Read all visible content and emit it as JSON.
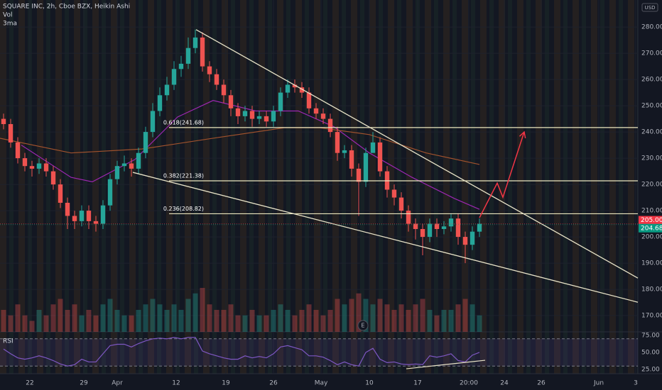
{
  "header": {
    "title": "SQUARE INC, 2h, Cboe BZX, Heikin Ashi",
    "vol": "Vol",
    "ma": "3ma",
    "currency": "USD"
  },
  "chart_data": [
    {
      "type": "candlestick",
      "ohlc": [
        [
          245,
          247,
          241,
          243
        ],
        [
          243,
          245,
          234,
          236
        ],
        [
          236,
          238,
          228,
          230
        ],
        [
          230,
          232,
          225,
          227
        ],
        [
          227,
          229,
          223,
          226
        ],
        [
          226,
          230,
          224,
          228
        ],
        [
          228,
          230,
          223,
          225
        ],
        [
          225,
          227,
          218,
          220
        ],
        [
          220,
          222,
          211,
          213
        ],
        [
          213,
          215,
          203,
          208
        ],
        [
          208,
          210,
          203,
          206
        ],
        [
          206,
          212,
          204,
          210
        ],
        [
          210,
          212,
          203,
          206
        ],
        [
          206,
          208,
          202,
          205
        ],
        [
          205,
          214,
          203,
          212
        ],
        [
          212,
          224,
          210,
          222
        ],
        [
          222,
          229,
          220,
          227
        ],
        [
          227,
          231,
          225,
          228
        ],
        [
          228,
          230,
          223,
          226
        ],
        [
          226,
          234,
          224,
          232
        ],
        [
          232,
          242,
          230,
          240
        ],
        [
          240,
          251,
          238,
          248
        ],
        [
          248,
          257,
          246,
          254
        ],
        [
          254,
          261,
          252,
          258
        ],
        [
          258,
          267,
          256,
          264
        ],
        [
          264,
          269,
          261,
          266
        ],
        [
          266,
          276,
          264,
          272
        ],
        [
          272,
          279,
          270,
          276
        ],
        [
          276,
          278,
          263,
          265
        ],
        [
          265,
          267,
          259,
          262
        ],
        [
          262,
          264,
          256,
          258
        ],
        [
          258,
          260,
          251,
          254
        ],
        [
          254,
          256,
          246,
          249
        ],
        [
          249,
          251,
          243,
          246
        ],
        [
          246,
          250,
          244,
          248
        ],
        [
          248,
          250,
          242,
          245
        ],
        [
          245,
          248,
          243,
          246
        ],
        [
          246,
          248,
          242,
          244
        ],
        [
          244,
          250,
          242,
          248
        ],
        [
          248,
          257,
          246,
          255
        ],
        [
          255,
          260,
          253,
          258
        ],
        [
          258,
          260,
          255,
          257
        ],
        [
          257,
          259,
          253,
          255
        ],
        [
          255,
          257,
          247,
          249
        ],
        [
          249,
          251,
          245,
          247
        ],
        [
          247,
          249,
          243,
          245
        ],
        [
          245,
          247,
          238,
          240
        ],
        [
          240,
          242,
          229,
          232
        ],
        [
          232,
          235,
          230,
          233
        ],
        [
          233,
          235,
          223,
          226
        ],
        [
          226,
          228,
          208,
          221
        ],
        [
          221,
          234,
          219,
          232
        ],
        [
          232,
          240,
          233,
          236
        ],
        [
          236,
          238,
          223,
          225
        ],
        [
          225,
          227,
          215,
          218
        ],
        [
          218,
          220,
          212,
          215
        ],
        [
          215,
          217,
          207,
          210
        ],
        [
          210,
          212,
          202,
          205
        ],
        [
          205,
          207,
          199,
          203
        ],
        [
          203,
          205,
          193,
          200
        ],
        [
          200,
          207,
          198,
          205
        ],
        [
          205,
          207,
          200,
          203
        ],
        [
          203,
          206,
          201,
          204
        ],
        [
          204,
          209,
          202,
          207
        ],
        [
          207,
          209,
          197,
          200
        ],
        [
          200,
          202,
          190,
          197
        ],
        [
          197,
          204,
          195,
          202
        ],
        [
          202,
          207,
          200,
          205
        ]
      ],
      "up_color": "#26a69a",
      "down_color": "#ef5350",
      "volume": [
        4,
        3,
        5,
        3,
        2,
        4,
        3,
        5,
        6,
        4,
        5,
        3,
        4,
        3,
        5,
        6,
        4,
        3,
        3,
        4,
        5,
        6,
        5,
        4,
        5,
        4,
        6,
        7,
        8,
        5,
        4,
        4,
        5,
        3,
        3,
        4,
        3,
        3,
        4,
        5,
        4,
        3,
        4,
        5,
        4,
        3,
        4,
        6,
        5,
        6,
        7,
        6,
        5,
        6,
        5,
        4,
        5,
        4,
        5,
        6,
        4,
        3,
        4,
        4,
        5,
        6,
        5,
        3
      ],
      "ylim": [
        163.8,
        290.3
      ],
      "yticks": [
        {
          "value": 170,
          "label": "170.00"
        },
        {
          "value": 180,
          "label": "180.00"
        },
        {
          "value": 190,
          "label": "190.00"
        },
        {
          "value": 200,
          "label": "200.00"
        },
        {
          "value": 210,
          "label": "210.00"
        },
        {
          "value": 220,
          "label": "220.00"
        },
        {
          "value": 230,
          "label": "230.00"
        },
        {
          "value": 240,
          "label": "240.00"
        },
        {
          "value": 250,
          "label": "250.00"
        },
        {
          "value": 260,
          "label": "260.00"
        },
        {
          "value": 270,
          "label": "270.00"
        },
        {
          "value": 280,
          "label": "280.00"
        }
      ],
      "xlim": [
        -0.5,
        89.3
      ],
      "xticks": [
        {
          "value": 3.7,
          "label": "22"
        },
        {
          "value": 11.3,
          "label": "29"
        },
        {
          "value": 16,
          "label": "Apr"
        },
        {
          "value": 24.3,
          "label": "12"
        },
        {
          "value": 31.3,
          "label": "19"
        },
        {
          "value": 38,
          "label": "26"
        },
        {
          "value": 44.7,
          "label": "May"
        },
        {
          "value": 51.5,
          "label": "10"
        },
        {
          "value": 58.3,
          "label": "17"
        },
        {
          "value": 65.5,
          "label": "20:00"
        },
        {
          "value": 70.5,
          "label": "24"
        },
        {
          "value": 75.7,
          "label": "26"
        },
        {
          "value": 83.8,
          "label": "Jun"
        },
        {
          "value": 89,
          "label": "3"
        }
      ],
      "moving_averages": [
        {
          "color": "#9c27b0",
          "x": [
            2.5,
            9.5,
            12.5,
            18.5,
            24.5,
            29.5,
            35.5,
            41.5,
            46.5,
            51.5,
            57.5,
            63.5,
            67
          ],
          "y": [
            235,
            222.7,
            221,
            229.5,
            245.7,
            252,
            248,
            248,
            242,
            232,
            222.7,
            214.6,
            210.5
          ]
        },
        {
          "color": "#a0522d",
          "x": [
            -0.5,
            9.5,
            19.5,
            29.5,
            39.5,
            44.5,
            51.5,
            59.5,
            67
          ],
          "y": [
            237.6,
            232,
            233.5,
            237.6,
            241.6,
            241.6,
            239,
            232,
            227.6
          ]
        }
      ],
      "fib_levels": [
        {
          "label": "0.618(241.68)",
          "value": 241.68
        },
        {
          "label": "0.382(221.38)",
          "value": 221.38
        },
        {
          "label": "0.236(208.82)",
          "value": 208.82
        }
      ],
      "fib_color": "#ece7c0",
      "trendlines": [
        {
          "color": "#e8e3c8",
          "x": [
            27.1,
            89.3
          ],
          "y": [
            279,
            184.3
          ]
        },
        {
          "color": "#e8e3c8",
          "x": [
            18.2,
            89.3
          ],
          "y": [
            224.6,
            175.1
          ]
        }
      ],
      "projection": {
        "color": "#f23645",
        "x": [
          67,
          69.5,
          70.3,
          73.3
        ],
        "y": [
          207.3,
          220.5,
          215.1,
          240
        ]
      },
      "price_labels": [
        {
          "value": 205.0,
          "label": "205.00",
          "color": "#f23645"
        },
        {
          "value": 204.68,
          "label": "204.68",
          "color": "#089981"
        }
      ],
      "event_marker": {
        "label": "E",
        "x": 50.6
      }
    },
    {
      "type": "line",
      "title": "RSI",
      "color": "#7e57c2",
      "values": [
        55,
        48,
        42,
        40,
        42,
        45,
        42,
        38,
        33,
        30,
        32,
        40,
        36,
        36,
        48,
        60,
        62,
        62,
        58,
        63,
        67,
        70,
        71,
        70,
        72,
        70,
        72,
        72,
        52,
        48,
        45,
        42,
        40,
        40,
        45,
        42,
        44,
        42,
        48,
        58,
        60,
        57,
        54,
        45,
        45,
        43,
        38,
        32,
        36,
        32,
        30,
        50,
        56,
        40,
        35,
        36,
        33,
        32,
        33,
        32,
        45,
        43,
        45,
        48,
        38,
        36,
        46,
        50
      ],
      "ylim": [
        18.75,
        80.2
      ],
      "yticks": [
        {
          "value": 25,
          "label": "25.00"
        },
        {
          "value": 50,
          "label": "50.00"
        },
        {
          "value": 75,
          "label": "75.00"
        }
      ],
      "band": [
        30,
        70
      ],
      "trendline": {
        "color": "#e8e3c8",
        "x": [
          56.7,
          67.8
        ],
        "y": [
          26,
          38.5
        ]
      }
    }
  ]
}
